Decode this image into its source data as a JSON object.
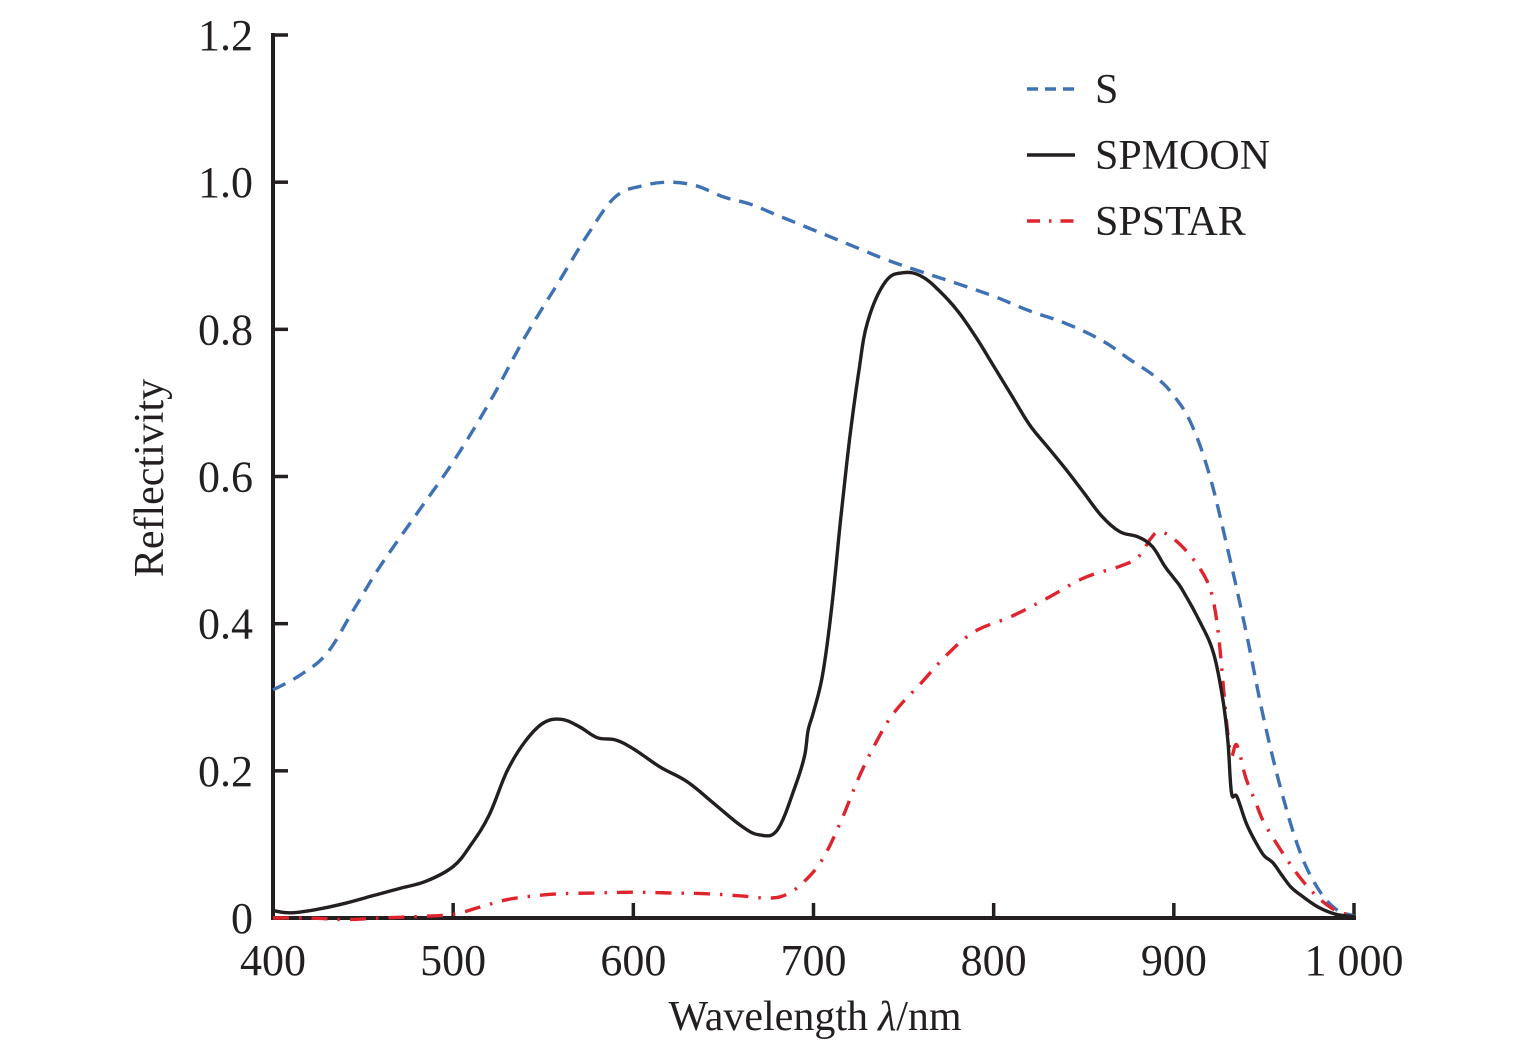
{
  "chart_data": {
    "type": "line",
    "title": "",
    "xlabel": "Wavelength",
    "xlabel_symbol": "λ",
    "xlabel_unit": "/nm",
    "ylabel": "Reflectivity",
    "xlim": [
      400,
      1000
    ],
    "ylim": [
      0,
      1.2
    ],
    "xticks": [
      400,
      500,
      600,
      700,
      800,
      900,
      1000
    ],
    "xtick_labels": [
      "400",
      "500",
      "600",
      "700",
      "800",
      "900",
      "1 000"
    ],
    "yticks": [
      0,
      0.2,
      0.4,
      0.6,
      0.8,
      1.0,
      1.2
    ],
    "ytick_labels": [
      "0",
      "0.2",
      "0.4",
      "0.6",
      "0.8",
      "1.0",
      "1.2"
    ],
    "grid": false,
    "legend_position": "top-right",
    "series": [
      {
        "name": "S",
        "style": "dashed",
        "color": "#3f72b5",
        "x": [
          400,
          415,
          430,
          445,
          460,
          480,
          500,
          520,
          540,
          560,
          575,
          590,
          605,
          620,
          635,
          650,
          665,
          680,
          700,
          720,
          740,
          760,
          780,
          800,
          820,
          840,
          860,
          875,
          890,
          900,
          910,
          920,
          930,
          940,
          950,
          960,
          970,
          980,
          990,
          1000
        ],
        "y": [
          0.31,
          0.33,
          0.36,
          0.42,
          0.48,
          0.55,
          0.62,
          0.7,
          0.79,
          0.87,
          0.93,
          0.98,
          0.995,
          1.0,
          0.995,
          0.98,
          0.97,
          0.955,
          0.935,
          0.915,
          0.895,
          0.878,
          0.862,
          0.845,
          0.825,
          0.808,
          0.785,
          0.76,
          0.735,
          0.71,
          0.67,
          0.6,
          0.5,
          0.39,
          0.27,
          0.17,
          0.09,
          0.04,
          0.012,
          0.003
        ]
      },
      {
        "name": "SPMOON",
        "style": "solid",
        "color": "#231f20",
        "x": [
          400,
          410,
          425,
          440,
          455,
          470,
          485,
          500,
          510,
          520,
          530,
          540,
          550,
          560,
          570,
          580,
          590,
          600,
          615,
          630,
          645,
          660,
          670,
          680,
          690,
          695,
          697,
          700,
          705,
          710,
          715,
          720,
          725,
          730,
          740,
          750,
          760,
          770,
          780,
          790,
          800,
          810,
          820,
          830,
          840,
          850,
          860,
          870,
          880,
          888,
          895,
          900,
          905,
          915,
          922,
          927,
          930,
          932,
          935,
          940,
          945,
          950,
          955,
          960,
          965,
          970,
          980,
          990,
          1000
        ],
        "y": [
          0.01,
          0.007,
          0.012,
          0.02,
          0.03,
          0.04,
          0.05,
          0.07,
          0.1,
          0.14,
          0.2,
          0.24,
          0.265,
          0.27,
          0.26,
          0.245,
          0.242,
          0.23,
          0.205,
          0.185,
          0.155,
          0.125,
          0.113,
          0.12,
          0.18,
          0.22,
          0.255,
          0.28,
          0.33,
          0.42,
          0.54,
          0.65,
          0.74,
          0.81,
          0.865,
          0.877,
          0.872,
          0.852,
          0.825,
          0.79,
          0.75,
          0.71,
          0.67,
          0.64,
          0.61,
          0.578,
          0.546,
          0.525,
          0.518,
          0.505,
          0.478,
          0.462,
          0.445,
          0.4,
          0.36,
          0.3,
          0.24,
          0.17,
          0.165,
          0.13,
          0.105,
          0.085,
          0.075,
          0.058,
          0.042,
          0.032,
          0.015,
          0.005,
          0.002
        ]
      },
      {
        "name": "SPSTAR",
        "style": "dash-dot",
        "color": "#e0242d",
        "x": [
          400,
          420,
          440,
          460,
          480,
          500,
          515,
          530,
          545,
          560,
          580,
          600,
          620,
          640,
          660,
          675,
          685,
          695,
          705,
          715,
          725,
          735,
          745,
          760,
          775,
          790,
          810,
          830,
          850,
          870,
          880,
          887,
          892,
          900,
          910,
          918,
          922,
          925,
          928,
          930,
          932,
          935,
          940,
          945,
          950,
          960,
          970,
          980,
          990,
          1000
        ],
        "y": [
          0.0,
          0.0,
          -0.002,
          0.0,
          0.002,
          0.005,
          0.015,
          0.025,
          0.03,
          0.033,
          0.034,
          0.035,
          0.034,
          0.033,
          0.03,
          0.027,
          0.032,
          0.05,
          0.08,
          0.13,
          0.19,
          0.24,
          0.28,
          0.32,
          0.36,
          0.39,
          0.41,
          0.435,
          0.462,
          0.478,
          0.49,
          0.515,
          0.525,
          0.515,
          0.49,
          0.46,
          0.43,
          0.38,
          0.3,
          0.25,
          0.22,
          0.235,
          0.19,
          0.16,
          0.13,
          0.09,
          0.055,
          0.028,
          0.01,
          0.003
        ]
      }
    ]
  }
}
